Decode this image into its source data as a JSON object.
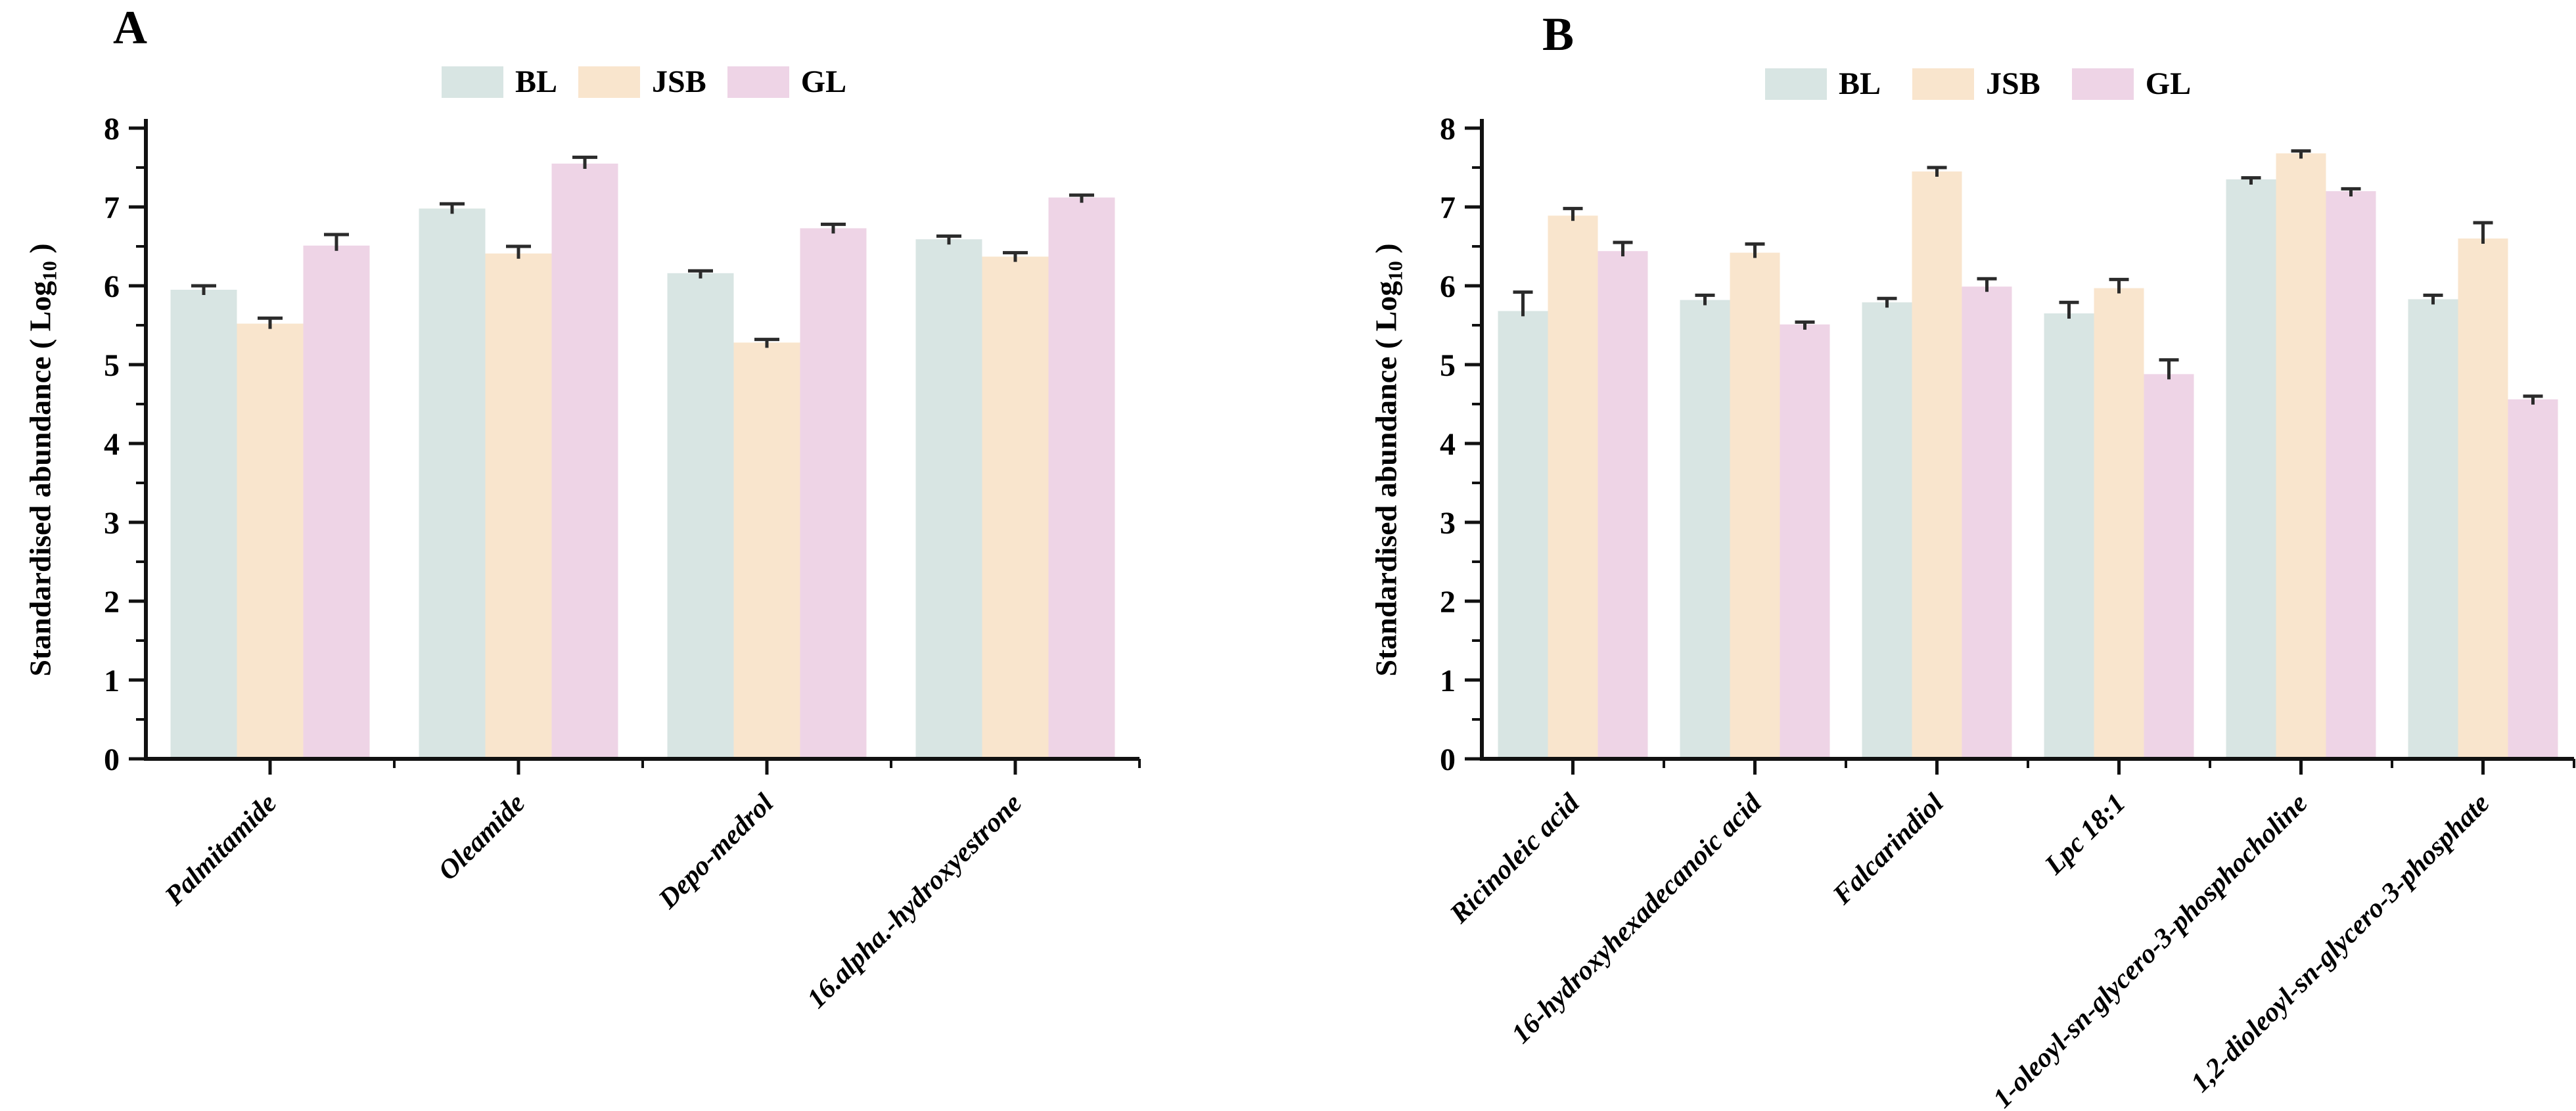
{
  "figure_title": "Standardised abundance bar charts, panels A and B",
  "ylabel_parts": {
    "prefix": "Standardised abundance ( Log",
    "sub": "10",
    "suffix": " )"
  },
  "chart_data": [
    {
      "type": "bar",
      "panel_label": "A",
      "categories": [
        "Palmitamide",
        "Oleamide",
        "Depo-medrol",
        "16.alpha.-hydroxyestrone"
      ],
      "series": [
        {
          "name": "BL",
          "color": "#d8e5e3",
          "values": [
            5.95,
            6.98,
            6.16,
            6.59
          ],
          "errors": [
            0.05,
            0.06,
            0.03,
            0.04
          ]
        },
        {
          "name": "JSB",
          "color": "#f9e5cd",
          "values": [
            5.52,
            6.41,
            5.28,
            6.37
          ],
          "errors": [
            0.07,
            0.09,
            0.04,
            0.05
          ]
        },
        {
          "name": "GL",
          "color": "#eed4e6",
          "values": [
            6.51,
            7.55,
            6.73,
            7.12
          ],
          "errors": [
            0.14,
            0.08,
            0.05,
            0.03
          ]
        }
      ],
      "ylabel": "Standardised abundance ( Log10 )",
      "ylim": [
        0,
        8
      ],
      "ytick_interval": 1,
      "yminor_interval": 0.5,
      "yticks": [
        "0",
        "1",
        "2",
        "3",
        "4",
        "5",
        "6",
        "7",
        "8"
      ],
      "legend_position": "top",
      "grid": false,
      "axis_color": "#111111",
      "error_bar_color": "#2b2b2b"
    },
    {
      "type": "bar",
      "panel_label": "B",
      "categories": [
        "Ricinoleic acid",
        "16-hydroxyhexadecanoic acid",
        "Falcarindiol",
        "Lpc 18:1",
        "1-oleoyl-sn-glycero-3-phosphocholine",
        "1,2-dioleoyl-sn-glycero-3-phosphate"
      ],
      "series": [
        {
          "name": "BL",
          "color": "#d8e5e3",
          "values": [
            5.68,
            5.82,
            5.79,
            5.65,
            7.35,
            5.83
          ],
          "errors": [
            0.24,
            0.06,
            0.05,
            0.14,
            0.02,
            0.05
          ]
        },
        {
          "name": "JSB",
          "color": "#f9e5cd",
          "values": [
            6.89,
            6.42,
            7.45,
            5.97,
            7.68,
            6.6
          ],
          "errors": [
            0.09,
            0.11,
            0.05,
            0.11,
            0.03,
            0.2
          ]
        },
        {
          "name": "GL",
          "color": "#eed4e6",
          "values": [
            6.44,
            5.51,
            5.99,
            4.88,
            7.2,
            4.56
          ],
          "errors": [
            0.11,
            0.03,
            0.1,
            0.18,
            0.03,
            0.04
          ]
        }
      ],
      "ylabel": "Standardised abundance ( Log10 )",
      "ylim": [
        0,
        8
      ],
      "ytick_interval": 1,
      "yminor_interval": 0.5,
      "yticks": [
        "0",
        "1",
        "2",
        "3",
        "4",
        "5",
        "6",
        "7",
        "8"
      ],
      "legend_position": "top",
      "grid": false,
      "axis_color": "#111111",
      "error_bar_color": "#2b2b2b"
    }
  ]
}
